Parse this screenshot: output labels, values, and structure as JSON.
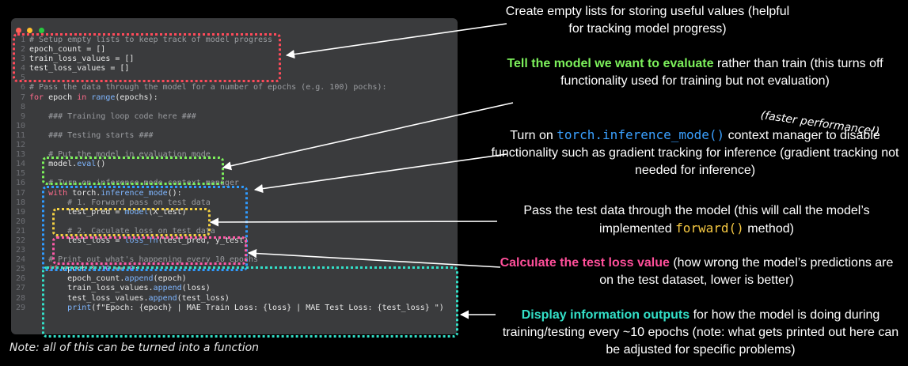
{
  "window": {
    "dot_colors": [
      "#ff5f56",
      "#ffbd2e",
      "#27c93f"
    ]
  },
  "code": {
    "lines": [
      {
        "n": "1",
        "parts": [
          {
            "t": "# Setup empty lists to keep track of model progress",
            "c": "cm"
          }
        ]
      },
      {
        "n": "2",
        "parts": [
          {
            "t": "epoch_count = []",
            "c": "tx"
          }
        ]
      },
      {
        "n": "3",
        "parts": [
          {
            "t": "train_loss_values = []",
            "c": "tx"
          }
        ]
      },
      {
        "n": "4",
        "parts": [
          {
            "t": "test_loss_values = []",
            "c": "tx"
          }
        ]
      },
      {
        "n": "5",
        "parts": []
      },
      {
        "n": "6",
        "parts": [
          {
            "t": "# Pass the data through the model for a number of epochs (e.g. 100) pochs):",
            "c": "cm"
          }
        ]
      },
      {
        "n": "7",
        "parts": [
          {
            "t": "for",
            "c": "kw"
          },
          {
            "t": " epoch ",
            "c": "tx"
          },
          {
            "t": "in",
            "c": "kw"
          },
          {
            "t": " ",
            "c": "tx"
          },
          {
            "t": "range",
            "c": "fn"
          },
          {
            "t": "(epochs):",
            "c": "tx"
          }
        ]
      },
      {
        "n": "8",
        "parts": []
      },
      {
        "n": "9",
        "parts": [
          {
            "t": "    ### Training loop code here ###",
            "c": "cm"
          }
        ]
      },
      {
        "n": "10",
        "parts": []
      },
      {
        "n": "11",
        "parts": [
          {
            "t": "    ### Testing starts ###",
            "c": "cm"
          }
        ]
      },
      {
        "n": "12",
        "parts": []
      },
      {
        "n": "13",
        "parts": [
          {
            "t": "    # Put the model in evaluation mode",
            "c": "cm"
          }
        ]
      },
      {
        "n": "14",
        "parts": [
          {
            "t": "    model.",
            "c": "tx"
          },
          {
            "t": "eval",
            "c": "fn"
          },
          {
            "t": "()",
            "c": "tx"
          }
        ]
      },
      {
        "n": "15",
        "parts": []
      },
      {
        "n": "16",
        "parts": [
          {
            "t": "    # Turn on inference mode context manager",
            "c": "cm"
          }
        ]
      },
      {
        "n": "17",
        "parts": [
          {
            "t": "    ",
            "c": "tx"
          },
          {
            "t": "with",
            "c": "kw"
          },
          {
            "t": " torch.",
            "c": "tx"
          },
          {
            "t": "inference_mode",
            "c": "fn"
          },
          {
            "t": "():",
            "c": "tx"
          }
        ]
      },
      {
        "n": "18",
        "parts": [
          {
            "t": "        # 1. Forward pass on test data",
            "c": "cm"
          }
        ]
      },
      {
        "n": "19",
        "parts": [
          {
            "t": "        test_pred = ",
            "c": "tx"
          },
          {
            "t": "model",
            "c": "fn"
          },
          {
            "t": "(X_test)",
            "c": "tx"
          }
        ]
      },
      {
        "n": "20",
        "parts": []
      },
      {
        "n": "21",
        "parts": [
          {
            "t": "        # 2. Caculate loss on test data",
            "c": "cm"
          }
        ]
      },
      {
        "n": "22",
        "parts": [
          {
            "t": "        test_loss = ",
            "c": "tx"
          },
          {
            "t": "loss_fn",
            "c": "fn"
          },
          {
            "t": "(test_pred, y_test)",
            "c": "tx"
          }
        ]
      },
      {
        "n": "23",
        "parts": []
      },
      {
        "n": "24",
        "parts": [
          {
            "t": "    # Print out what's happening every 10 epochs",
            "c": "cm"
          }
        ]
      },
      {
        "n": "25",
        "parts": [
          {
            "t": "    ",
            "c": "tx"
          },
          {
            "t": "if",
            "c": "kw"
          },
          {
            "t": " epoch % ",
            "c": "tx"
          },
          {
            "t": "10",
            "c": "num"
          },
          {
            "t": " == ",
            "c": "tx"
          },
          {
            "t": "0",
            "c": "num"
          },
          {
            "t": ":",
            "c": "tx"
          }
        ]
      },
      {
        "n": "26",
        "parts": [
          {
            "t": "        epoch_count.",
            "c": "tx"
          },
          {
            "t": "append",
            "c": "fn"
          },
          {
            "t": "(epoch)",
            "c": "tx"
          }
        ]
      },
      {
        "n": "27",
        "parts": [
          {
            "t": "        train_loss_values.",
            "c": "tx"
          },
          {
            "t": "append",
            "c": "fn"
          },
          {
            "t": "(loss)",
            "c": "tx"
          }
        ]
      },
      {
        "n": "28",
        "parts": [
          {
            "t": "        test_loss_values.",
            "c": "tx"
          },
          {
            "t": "append",
            "c": "fn"
          },
          {
            "t": "(test_loss)",
            "c": "tx"
          }
        ]
      },
      {
        "n": "29",
        "parts": [
          {
            "t": "        ",
            "c": "tx"
          },
          {
            "t": "print",
            "c": "fn"
          },
          {
            "t": "(f\"Epoch: {epoch} | MAE Train Loss: {loss} | MAE Test Loss: {test_loss} \")",
            "c": "st"
          }
        ]
      }
    ]
  },
  "box_colors": {
    "red": "#ff4a5a",
    "green": "#7cf05b",
    "blue": "#2f9bff",
    "yellow": "#f5d142",
    "pink": "#ff5aa8",
    "cyan": "#33e0c8"
  },
  "annotations": {
    "a1": {
      "plain": "Create empty lists for storing useful values (helpful for tracking model progress)"
    },
    "a2": {
      "highlight": "Tell the model we want to evaluate",
      "rest": " rather than train (this turns off functionality used for training but not evaluation)"
    },
    "a2_aside": "(faster performance!)",
    "a3": {
      "pre": "Turn on ",
      "code": "torch.inference_mode()",
      "post": " context manager to disable functionality such as gradient tracking for inference (gradient tracking not needed for inference)"
    },
    "a4": {
      "pre": "Pass the test data through the model (this will call the model’s implemented ",
      "code": "forward()",
      "post": "   method)"
    },
    "a5": {
      "highlight": "Calculate the test loss value",
      "rest": " (how wrong the model’s predictions are on the test dataset, lower is better)"
    },
    "a6": {
      "highlight": "Display information outputs",
      "rest": " for how the model is doing during training/testing every ~10 epochs (note: what gets printed out here can be adjusted for specific problems)"
    }
  },
  "note": "Note: all of this can be turned into a function"
}
